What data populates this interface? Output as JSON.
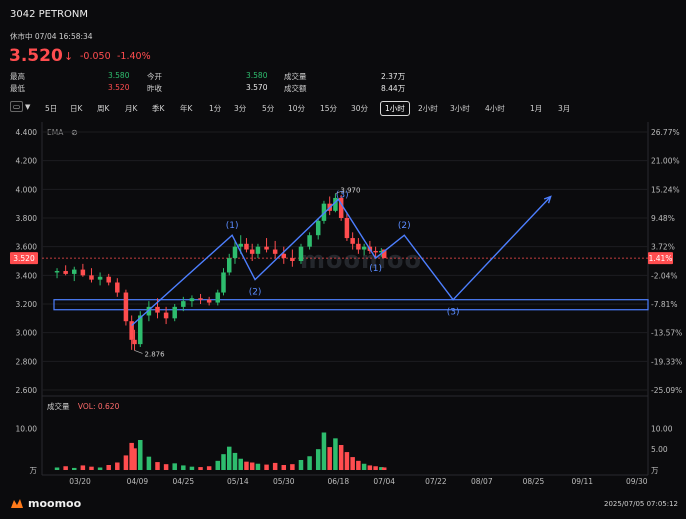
{
  "header": {
    "code_name": "3042  PETRONM",
    "status": "休市中 07/04 16:58:34",
    "price": "3.520",
    "price_arrow": "↓",
    "change": "-0.050",
    "change_pct": "-1.40%"
  },
  "stats": {
    "high_label": "最高",
    "high_value": "3.580",
    "low_label": "最低",
    "low_value": "3.520",
    "open_label": "今开",
    "open_value": "3.580",
    "prev_close_label": "昨收",
    "prev_close_value": "3.570",
    "volume_label": "成交量",
    "volume_value": "2.37万",
    "turnover_label": "成交额",
    "turnover_value": "8.44万"
  },
  "toolbar": {
    "layout_icon": "layout-icon",
    "timeframes": [
      "5日",
      "日K",
      "周K",
      "月K",
      "季K",
      "年K",
      "1分",
      "3分",
      "5分",
      "10分",
      "15分",
      "30分",
      "1小时",
      "2小时",
      "3小时",
      "4小时",
      "1月",
      "3月"
    ],
    "active_timeframe": "1小时"
  },
  "indicator": {
    "ema_label": "EMA",
    "eye_icon": "eye-off-icon"
  },
  "watermark": "moomoo",
  "volume": {
    "label": "成交量",
    "vol_text": "VOL: 0.620",
    "ticks": [
      "10.00",
      "5.00",
      "万"
    ]
  },
  "footer": {
    "brand": "moomoo",
    "timestamp": "2025/07/05 07:05:12"
  },
  "colors": {
    "up": "#2ebd6e",
    "down": "#ff4d4f",
    "drawing": "#4d7fff",
    "bg": "#0b0b0d"
  },
  "chart_data": {
    "type": "candlestick",
    "price_axis": {
      "ticks": [
        4.4,
        4.2,
        4.0,
        3.8,
        3.6,
        3.4,
        3.2,
        3.0,
        2.8,
        2.6
      ],
      "ylim": [
        2.6,
        4.4
      ]
    },
    "pct_axis": {
      "ticks": [
        "26.77%",
        "21.00%",
        "15.24%",
        "9.48%",
        "3.72%",
        "-2.04%",
        "-7.81%",
        "-13.57%",
        "-19.33%",
        "-25.09%"
      ]
    },
    "current_price": {
      "value": 3.52,
      "label": "3.520",
      "pct_label": "1.41%"
    },
    "x_labels": [
      "03/20",
      "04/09",
      "04/25",
      "05/14",
      "05/30",
      "06/18",
      "07/04",
      "07/22",
      "08/07",
      "08/25",
      "09/11",
      "09/30"
    ],
    "annotations": [
      {
        "text": "2.876",
        "value": 2.876
      },
      {
        "text": "3.970",
        "value": 3.97
      }
    ],
    "elliott_labels": [
      "(1)",
      "(2)",
      "(3)",
      "(1)",
      "(2)",
      "(3)"
    ],
    "support_zone": [
      3.16,
      3.23
    ],
    "wave_path": [
      {
        "date": "04/07",
        "price": 3.05
      },
      {
        "date": "05/12",
        "price": 3.68
      },
      {
        "date": "05/20",
        "price": 3.37
      },
      {
        "date": "06/18",
        "price": 3.93
      },
      {
        "date": "07/01",
        "price": 3.52
      },
      {
        "date": "07/11",
        "price": 3.68
      },
      {
        "date": "07/28",
        "price": 3.23
      },
      {
        "date": "08/31",
        "price": 3.95
      }
    ],
    "candles": [
      {
        "date": "03/12",
        "ohlc": [
          3.42,
          3.45,
          3.38,
          3.43
        ]
      },
      {
        "date": "03/15",
        "ohlc": [
          3.43,
          3.47,
          3.4,
          3.41
        ]
      },
      {
        "date": "03/18",
        "ohlc": [
          3.41,
          3.46,
          3.36,
          3.44
        ]
      },
      {
        "date": "03/21",
        "ohlc": [
          3.44,
          3.48,
          3.39,
          3.4
        ]
      },
      {
        "date": "03/24",
        "ohlc": [
          3.4,
          3.45,
          3.35,
          3.37
        ]
      },
      {
        "date": "03/27",
        "ohlc": [
          3.37,
          3.42,
          3.33,
          3.39
        ]
      },
      {
        "date": "03/30",
        "ohlc": [
          3.39,
          3.41,
          3.33,
          3.35
        ]
      },
      {
        "date": "04/02",
        "ohlc": [
          3.35,
          3.38,
          3.25,
          3.28
        ]
      },
      {
        "date": "04/05",
        "ohlc": [
          3.28,
          3.3,
          3.05,
          3.08
        ]
      },
      {
        "date": "04/07",
        "ohlc": [
          3.08,
          3.12,
          2.88,
          2.95
        ]
      },
      {
        "date": "04/08",
        "ohlc": [
          2.95,
          3.02,
          2.876,
          2.92
        ]
      },
      {
        "date": "04/10",
        "ohlc": [
          2.92,
          3.15,
          2.9,
          3.12
        ]
      },
      {
        "date": "04/13",
        "ohlc": [
          3.12,
          3.22,
          3.08,
          3.18
        ]
      },
      {
        "date": "04/16",
        "ohlc": [
          3.18,
          3.24,
          3.1,
          3.14
        ]
      },
      {
        "date": "04/19",
        "ohlc": [
          3.14,
          3.18,
          3.06,
          3.1
        ]
      },
      {
        "date": "04/22",
        "ohlc": [
          3.1,
          3.2,
          3.08,
          3.18
        ]
      },
      {
        "date": "04/25",
        "ohlc": [
          3.18,
          3.25,
          3.15,
          3.22
        ]
      },
      {
        "date": "04/28",
        "ohlc": [
          3.22,
          3.26,
          3.18,
          3.24
        ]
      },
      {
        "date": "05/01",
        "ohlc": [
          3.24,
          3.27,
          3.2,
          3.23
        ]
      },
      {
        "date": "05/04",
        "ohlc": [
          3.23,
          3.25,
          3.19,
          3.21
        ]
      },
      {
        "date": "05/07",
        "ohlc": [
          3.21,
          3.3,
          3.19,
          3.28
        ]
      },
      {
        "date": "05/09",
        "ohlc": [
          3.28,
          3.45,
          3.26,
          3.42
        ]
      },
      {
        "date": "05/11",
        "ohlc": [
          3.42,
          3.55,
          3.4,
          3.52
        ]
      },
      {
        "date": "05/13",
        "ohlc": [
          3.52,
          3.64,
          3.48,
          3.6
        ]
      },
      {
        "date": "05/15",
        "ohlc": [
          3.6,
          3.68,
          3.55,
          3.62
        ]
      },
      {
        "date": "05/17",
        "ohlc": [
          3.62,
          3.66,
          3.56,
          3.58
        ]
      },
      {
        "date": "05/19",
        "ohlc": [
          3.58,
          3.62,
          3.5,
          3.55
        ]
      },
      {
        "date": "05/21",
        "ohlc": [
          3.55,
          3.62,
          3.52,
          3.6
        ]
      },
      {
        "date": "05/24",
        "ohlc": [
          3.6,
          3.66,
          3.56,
          3.58
        ]
      },
      {
        "date": "05/27",
        "ohlc": [
          3.58,
          3.64,
          3.52,
          3.55
        ]
      },
      {
        "date": "05/30",
        "ohlc": [
          3.55,
          3.6,
          3.48,
          3.52
        ]
      },
      {
        "date": "06/02",
        "ohlc": [
          3.52,
          3.58,
          3.46,
          3.5
        ]
      },
      {
        "date": "06/05",
        "ohlc": [
          3.5,
          3.62,
          3.48,
          3.6
        ]
      },
      {
        "date": "06/08",
        "ohlc": [
          3.6,
          3.7,
          3.58,
          3.68
        ]
      },
      {
        "date": "06/11",
        "ohlc": [
          3.68,
          3.8,
          3.65,
          3.78
        ]
      },
      {
        "date": "06/13",
        "ohlc": [
          3.78,
          3.92,
          3.76,
          3.9
        ]
      },
      {
        "date": "06/15",
        "ohlc": [
          3.9,
          3.95,
          3.82,
          3.85
        ]
      },
      {
        "date": "06/17",
        "ohlc": [
          3.85,
          3.97,
          3.84,
          3.94
        ]
      },
      {
        "date": "06/19",
        "ohlc": [
          3.94,
          3.96,
          3.78,
          3.8
        ]
      },
      {
        "date": "06/21",
        "ohlc": [
          3.8,
          3.84,
          3.64,
          3.66
        ]
      },
      {
        "date": "06/23",
        "ohlc": [
          3.66,
          3.7,
          3.58,
          3.62
        ]
      },
      {
        "date": "06/25",
        "ohlc": [
          3.62,
          3.66,
          3.55,
          3.58
        ]
      },
      {
        "date": "06/27",
        "ohlc": [
          3.58,
          3.62,
          3.54,
          3.6
        ]
      },
      {
        "date": "06/29",
        "ohlc": [
          3.6,
          3.64,
          3.55,
          3.57
        ]
      },
      {
        "date": "07/01",
        "ohlc": [
          3.57,
          3.6,
          3.52,
          3.56
        ]
      },
      {
        "date": "07/03",
        "ohlc": [
          3.56,
          3.59,
          3.53,
          3.57
        ]
      },
      {
        "date": "07/04",
        "ohlc": [
          3.58,
          3.58,
          3.52,
          3.52
        ]
      }
    ],
    "volumes": [
      {
        "date": "03/12",
        "value": 0.6
      },
      {
        "date": "03/15",
        "value": 0.9
      },
      {
        "date": "03/18",
        "value": 0.5
      },
      {
        "date": "03/21",
        "value": 1.1
      },
      {
        "date": "03/24",
        "value": 0.8
      },
      {
        "date": "03/27",
        "value": 0.6
      },
      {
        "date": "03/30",
        "value": 1.2
      },
      {
        "date": "04/02",
        "value": 1.8
      },
      {
        "date": "04/05",
        "value": 3.5
      },
      {
        "date": "04/07",
        "value": 6.5
      },
      {
        "date": "04/08",
        "value": 5.2
      },
      {
        "date": "04/10",
        "value": 7.2
      },
      {
        "date": "04/13",
        "value": 3.2
      },
      {
        "date": "04/16",
        "value": 1.9
      },
      {
        "date": "04/19",
        "value": 1.4
      },
      {
        "date": "04/22",
        "value": 1.6
      },
      {
        "date": "04/25",
        "value": 1.1
      },
      {
        "date": "04/28",
        "value": 0.8
      },
      {
        "date": "05/01",
        "value": 0.7
      },
      {
        "date": "05/04",
        "value": 0.9
      },
      {
        "date": "05/07",
        "value": 2.2
      },
      {
        "date": "05/09",
        "value": 3.8
      },
      {
        "date": "05/11",
        "value": 5.6
      },
      {
        "date": "05/13",
        "value": 4.1
      },
      {
        "date": "05/15",
        "value": 2.7
      },
      {
        "date": "05/17",
        "value": 2.0
      },
      {
        "date": "05/19",
        "value": 1.8
      },
      {
        "date": "05/21",
        "value": 1.5
      },
      {
        "date": "05/24",
        "value": 1.3
      },
      {
        "date": "05/27",
        "value": 1.7
      },
      {
        "date": "05/30",
        "value": 1.2
      },
      {
        "date": "06/02",
        "value": 1.4
      },
      {
        "date": "06/05",
        "value": 2.4
      },
      {
        "date": "06/08",
        "value": 3.3
      },
      {
        "date": "06/11",
        "value": 5.0
      },
      {
        "date": "06/13",
        "value": 9.0
      },
      {
        "date": "06/15",
        "value": 5.5
      },
      {
        "date": "06/17",
        "value": 7.6
      },
      {
        "date": "06/19",
        "value": 6.0
      },
      {
        "date": "06/21",
        "value": 4.3
      },
      {
        "date": "06/23",
        "value": 3.1
      },
      {
        "date": "06/25",
        "value": 2.2
      },
      {
        "date": "06/27",
        "value": 1.5
      },
      {
        "date": "06/29",
        "value": 1.1
      },
      {
        "date": "07/01",
        "value": 0.9
      },
      {
        "date": "07/03",
        "value": 0.7
      },
      {
        "date": "07/04",
        "value": 0.62
      }
    ]
  }
}
